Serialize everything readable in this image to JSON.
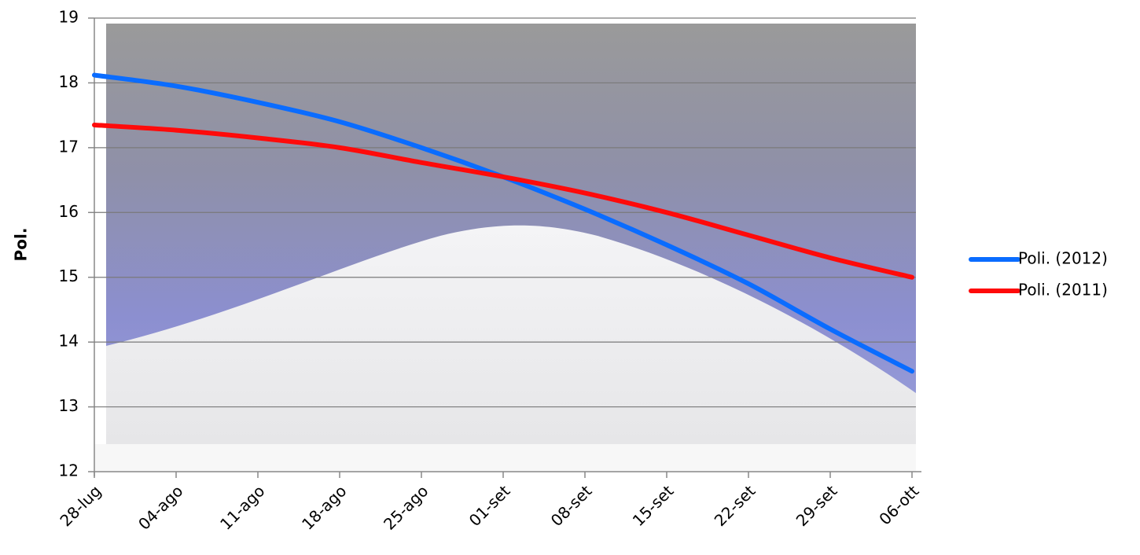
{
  "chart_data": {
    "type": "line",
    "y_label": "Pol.",
    "categories": [
      "28-lug",
      "04-ago",
      "11-ago",
      "18-ago",
      "25-ago",
      "01-set",
      "08-set",
      "15-set",
      "22-set",
      "29-set",
      "06-ott"
    ],
    "series": [
      {
        "name": "Poli. (2012)",
        "color": "#0a6cff",
        "values": [
          18.12,
          17.95,
          17.7,
          17.4,
          17.0,
          16.55,
          16.05,
          15.5,
          14.9,
          14.2,
          13.55
        ]
      },
      {
        "name": "Poli. (2011)",
        "color": "#ff0a0a",
        "values": [
          17.35,
          17.27,
          17.15,
          17.0,
          16.77,
          16.55,
          16.3,
          16.0,
          15.65,
          15.3,
          15.0
        ]
      }
    ],
    "ylim": [
      12,
      19
    ],
    "yticks": [
      12,
      13,
      14,
      15,
      16,
      17,
      18,
      19
    ],
    "grid": true
  }
}
